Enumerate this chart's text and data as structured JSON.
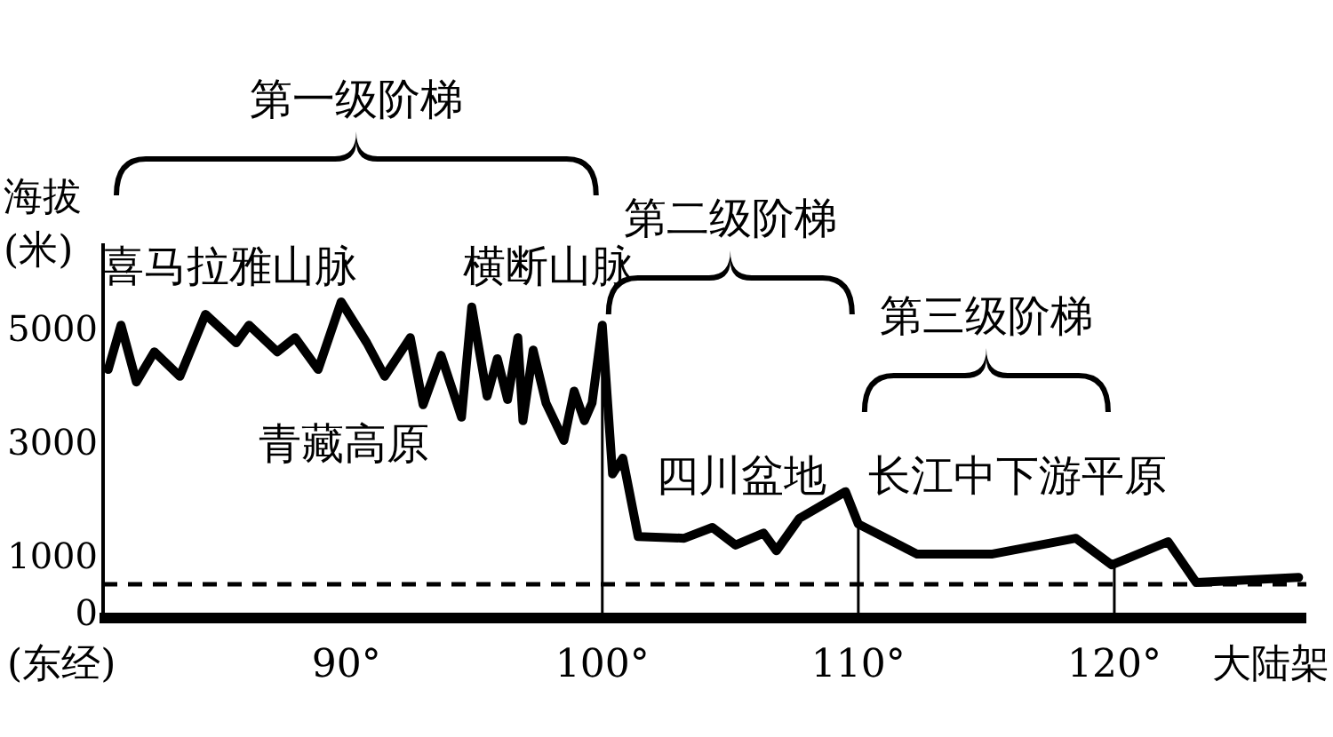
{
  "chart_data": {
    "type": "line",
    "xlabel": "(东经)",
    "ylabel": "海拔(米)",
    "xlim": [
      80.5,
      127.5
    ],
    "ylim": [
      0,
      6500
    ],
    "xticks": [
      {
        "value": 90,
        "label": "90°"
      },
      {
        "value": 100,
        "label": "100°"
      },
      {
        "value": 110,
        "label": "110°"
      },
      {
        "value": 120,
        "label": "120°"
      },
      {
        "value": 126,
        "label": "大陆架"
      }
    ],
    "yticks": [
      0,
      1000,
      3000,
      5000
    ],
    "series": [
      {
        "color": "#000000",
        "x": [
          80.7,
          81.2,
          81.8,
          82.5,
          83.5,
          84.5,
          85.7,
          86.2,
          87.3,
          88.0,
          88.9,
          89.8,
          90.8,
          91.5,
          92.5,
          93.0,
          93.7,
          94.5,
          94.9,
          95.5,
          95.9,
          96.3,
          96.7,
          96.9,
          97.3,
          97.8,
          98.5,
          98.9,
          99.3,
          99.6,
          100.0,
          100.4,
          100.8,
          101.4,
          103.2,
          104.3,
          105.2,
          106.3,
          106.8,
          107.7,
          109.5,
          110.0,
          112.3,
          115.2,
          118.5,
          119.9,
          122.1,
          123.2,
          127.2
        ],
        "values": [
          4280,
          5060,
          4060,
          4590,
          4160,
          5250,
          4750,
          5060,
          4590,
          4840,
          4280,
          5470,
          4750,
          4160,
          4840,
          3660,
          4530,
          3440,
          5380,
          3810,
          4470,
          3750,
          4840,
          3380,
          4620,
          3690,
          3030,
          3900,
          3380,
          3690,
          5060,
          2440,
          2720,
          1340,
          1310,
          1500,
          1190,
          1400,
          1090,
          1660,
          2130,
          1560,
          1030,
          1030,
          1310,
          840,
          1250,
          530,
          620
        ]
      }
    ],
    "ref_lines": [
      {
        "axis": "x",
        "value": 100
      },
      {
        "axis": "x",
        "value": 110
      },
      {
        "axis": "x",
        "value": 120
      },
      {
        "axis": "y",
        "value": 500,
        "line_style": "dashed"
      }
    ],
    "annotations": [
      "第一级阶梯",
      "第二级阶梯",
      "第三级阶梯",
      "喜马拉雅山脉",
      "横断山脉",
      "青藏高原",
      "四川盆地",
      "长江中下游平原"
    ],
    "marker": "none",
    "line_style": "solid",
    "grid": false
  }
}
